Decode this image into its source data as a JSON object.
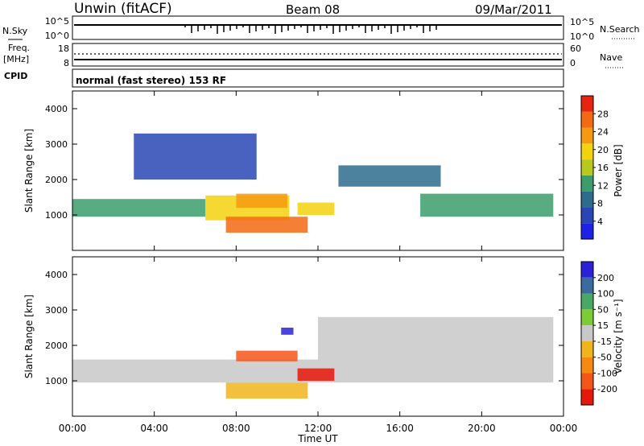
{
  "header": {
    "station": "Unwin (fitACF)",
    "beam": "Beam 08",
    "date": "09/Mar/2011"
  },
  "noise_panel": {
    "left_label": "N.Sky",
    "left_ticks": [
      "10^5",
      "10^0"
    ],
    "right_label": "N.Search",
    "right_ticks": [
      "10^5",
      "10^0"
    ]
  },
  "freq_panel": {
    "left_label_1": "Freq.",
    "left_label_2": "[MHz]",
    "left_ticks": [
      "18",
      "8"
    ],
    "right_label": "Nave",
    "right_ticks": [
      "60",
      "0"
    ]
  },
  "cpid_panel": {
    "label": "CPID",
    "text": "normal (fast stereo) 153 RF"
  },
  "colors": {
    "power_scale": [
      "#1e22e6",
      "#2a46b4",
      "#2e6c8e",
      "#3c9c6c",
      "#b8c81c",
      "#f3d20e",
      "#f59a10",
      "#f36a12",
      "#e62410"
    ],
    "velocity_scale": [
      "#2a22d6",
      "#3a6a9e",
      "#4aa866",
      "#7ccc34",
      "#c8c8c8",
      "#f0b41c",
      "#f68a10",
      "#f4561a",
      "#e6180c"
    ]
  },
  "chart_data": [
    {
      "type": "heatmap",
      "name": "power",
      "ylabel": "Slant Range [km]",
      "xlabel": "Time UT",
      "x_range_hours": [
        0,
        24
      ],
      "ylim": [
        0,
        4500
      ],
      "yticks": [
        "4000",
        "3000",
        "2000",
        "1000"
      ],
      "xticks": [
        "00:00",
        "04:00",
        "08:00",
        "12:00",
        "16:00",
        "20:00",
        "00:00"
      ],
      "colorbar": {
        "label": "Power [dB]",
        "ticks": [
          "28",
          "24",
          "20",
          "16",
          "12",
          "8",
          "4"
        ],
        "range": [
          0,
          32
        ]
      },
      "regions": [
        {
          "t": [
            0.0,
            6.5
          ],
          "r": [
            950,
            1450
          ],
          "power": 14
        },
        {
          "t": [
            6.5,
            10.6
          ],
          "r": [
            850,
            1550
          ],
          "power": 18
        },
        {
          "t": [
            8.0,
            10.5
          ],
          "r": [
            1200,
            1600
          ],
          "power": 22
        },
        {
          "t": [
            7.5,
            11.5
          ],
          "r": [
            500,
            950
          ],
          "power": 26
        },
        {
          "t": [
            11.0,
            12.8
          ],
          "r": [
            1000,
            1350
          ],
          "power": 20
        },
        {
          "t": [
            13.0,
            18.0
          ],
          "r": [
            1800,
            2400
          ],
          "power": 8
        },
        {
          "t": [
            17.0,
            23.5
          ],
          "r": [
            950,
            1600
          ],
          "power": 14
        },
        {
          "t": [
            3.0,
            9.0
          ],
          "r": [
            2000,
            3300
          ],
          "power": 4
        }
      ]
    },
    {
      "type": "heatmap",
      "name": "velocity",
      "ylabel": "Slant Range [km]",
      "xlabel": "Time UT",
      "x_range_hours": [
        0,
        24
      ],
      "ylim": [
        0,
        4500
      ],
      "yticks": [
        "4000",
        "3000",
        "2000",
        "1000"
      ],
      "xticks": [
        "00:00",
        "04:00",
        "08:00",
        "12:00",
        "16:00",
        "20:00",
        "00:00"
      ],
      "colorbar": {
        "label": "Velocity [m s⁻¹]",
        "ticks": [
          "200",
          "100",
          "50",
          "15",
          "-15",
          "-50",
          "-100",
          "-200"
        ],
        "range": [
          -250,
          250
        ]
      },
      "regions": [
        {
          "t": [
            0.0,
            12.0
          ],
          "r": [
            950,
            1600
          ],
          "velocity": 0
        },
        {
          "t": [
            12.0,
            23.5
          ],
          "r": [
            950,
            2800
          ],
          "velocity": 0
        },
        {
          "t": [
            8.0,
            11.0
          ],
          "r": [
            1550,
            1850
          ],
          "velocity": -180
        },
        {
          "t": [
            11.0,
            12.8
          ],
          "r": [
            1000,
            1350
          ],
          "velocity": -200
        },
        {
          "t": [
            7.5,
            11.5
          ],
          "r": [
            500,
            950
          ],
          "velocity": -60
        },
        {
          "t": [
            10.2,
            10.8
          ],
          "r": [
            2300,
            2500
          ],
          "velocity": 200
        }
      ]
    }
  ]
}
